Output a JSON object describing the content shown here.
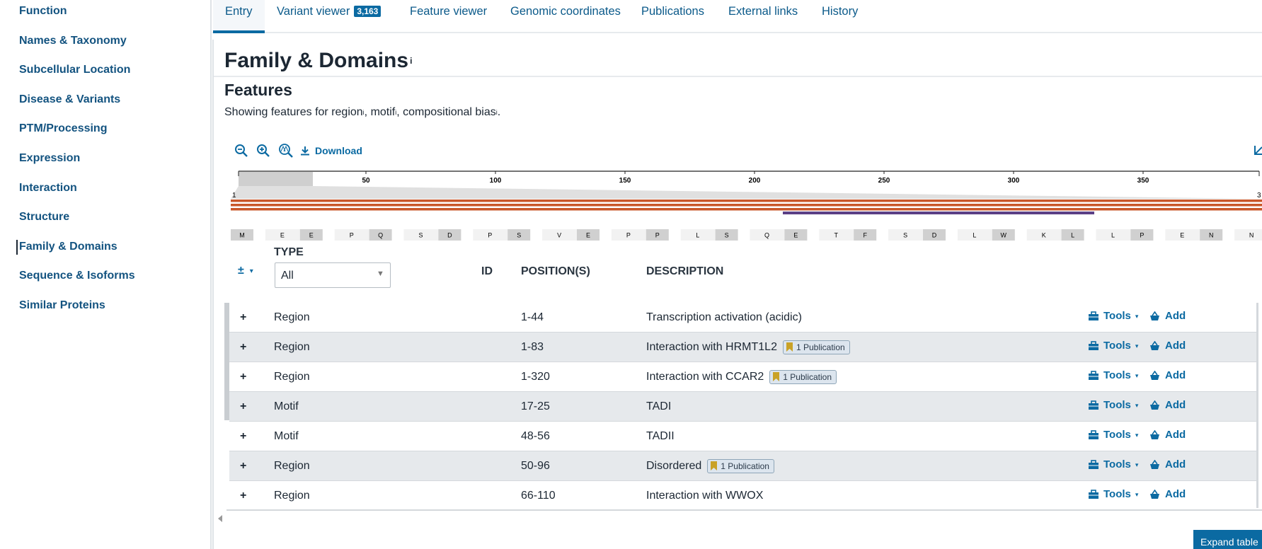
{
  "sidebar": [
    "Function",
    "Names & Taxonomy",
    "Subcellular Location",
    "Disease & Variants",
    "PTM/Processing",
    "Expression",
    "Interaction",
    "Structure",
    "Family & Domains",
    "Sequence & Isoforms",
    "Similar Proteins"
  ],
  "tabs": [
    {
      "label": "Entry"
    },
    {
      "label": "Variant viewer",
      "badge": "3,163"
    },
    {
      "label": "Feature viewer"
    },
    {
      "label": "Genomic coordinates"
    },
    {
      "label": "Publications"
    },
    {
      "label": "External links"
    },
    {
      "label": "History"
    }
  ],
  "section": {
    "title": "Family & Domains",
    "info": "i"
  },
  "features": {
    "title": "Features",
    "intro": {
      "parts": [
        {
          "text": "Showing features for region",
          "info": "i"
        },
        {
          "text": ", motif",
          "info": "i"
        },
        {
          "text": ", compositional bias",
          "info": "i"
        }
      ],
      "end": "."
    }
  },
  "toolbar": {
    "download": "Download"
  },
  "ruler": {
    "start": "1",
    "ticks": [
      50,
      100,
      150,
      200,
      250,
      300,
      350
    ],
    "end": "3"
  },
  "sequence": [
    "M",
    "E",
    "E",
    "P",
    "Q",
    "S",
    "D",
    "P",
    "S",
    "V",
    "E",
    "P",
    "P",
    "L",
    "S",
    "Q",
    "E",
    "T",
    "F",
    "S",
    "D",
    "L",
    "W",
    "K",
    "L",
    "L",
    "P",
    "E",
    "N",
    "N"
  ],
  "table": {
    "headers": {
      "toggle": "±",
      "type": "TYPE",
      "filter": "All",
      "id": "ID",
      "positions": "POSITION(S)",
      "description": "DESCRIPTION"
    },
    "rows": [
      {
        "expand": "+",
        "type": "Region",
        "positions": "1-44",
        "description": "Transcription activation (acidic)",
        "tools": "Tools",
        "add": "Add"
      },
      {
        "expand": "+",
        "type": "Region",
        "positions": "1-83",
        "description": "Interaction with HRMT1L2",
        "publication": "1 Publication",
        "tools": "Tools",
        "add": "Add"
      },
      {
        "expand": "+",
        "type": "Region",
        "positions": "1-320",
        "description": "Interaction with CCAR2",
        "publication": "1 Publication",
        "tools": "Tools",
        "add": "Add"
      },
      {
        "expand": "+",
        "type": "Motif",
        "positions": "17-25",
        "description": "TADI",
        "tools": "Tools",
        "add": "Add"
      },
      {
        "expand": "+",
        "type": "Motif",
        "positions": "48-56",
        "description": "TADII",
        "tools": "Tools",
        "add": "Add"
      },
      {
        "expand": "+",
        "type": "Region",
        "positions": "50-96",
        "description": "Disordered",
        "publication": "1 Publication",
        "tools": "Tools",
        "add": "Add"
      },
      {
        "expand": "+",
        "type": "Region",
        "positions": "66-110",
        "description": "Interaction with WWOX",
        "tools": "Tools",
        "add": "Add"
      }
    ],
    "expand_button": "Expand table"
  }
}
